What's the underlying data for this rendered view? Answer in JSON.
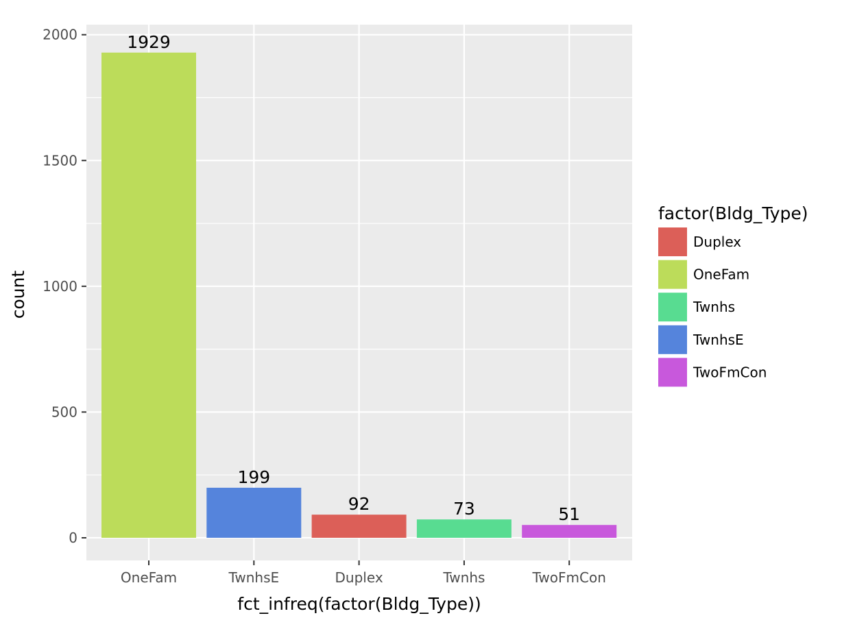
{
  "chart_data": {
    "type": "bar",
    "xlabel": "fct_infreq(factor(Bldg_Type))",
    "ylabel": "count",
    "categories": [
      "OneFam",
      "TwnhsE",
      "Duplex",
      "Twnhs",
      "TwoFmCon"
    ],
    "values": [
      1929,
      199,
      92,
      73,
      51
    ],
    "data_labels": [
      "1929",
      "199",
      "92",
      "73",
      "51"
    ],
    "bar_colors": [
      "#bcdc5a",
      "#5584dc",
      "#dc5f58",
      "#58dc91",
      "#c858dc"
    ],
    "ylim": [
      -90,
      2040
    ],
    "yticks": [
      0,
      500,
      1000,
      1500,
      2000
    ],
    "ytick_labels": [
      "0",
      "500",
      "1000",
      "1500",
      "2000"
    ],
    "grid": true,
    "panel_background": "#ebebeb",
    "legend": {
      "title": "factor(Bldg_Type)",
      "position": "right",
      "items": [
        {
          "label": "Duplex",
          "color": "#dc5f58"
        },
        {
          "label": "OneFam",
          "color": "#bcdc5a"
        },
        {
          "label": "Twnhs",
          "color": "#58dc91"
        },
        {
          "label": "TwnhsE",
          "color": "#5584dc"
        },
        {
          "label": "TwoFmCon",
          "color": "#c858dc"
        }
      ]
    }
  }
}
